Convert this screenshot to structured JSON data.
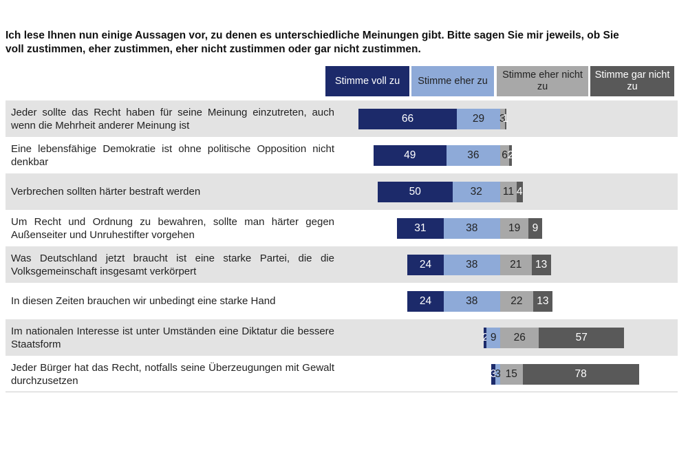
{
  "chart_data": {
    "type": "diverging-bar",
    "title": "Ich lese Ihnen nun einige Aussagen vor, zu denen es unterschiedliche Meinungen gibt. Bitte sagen Sie mir jeweils, ob Sie voll zustimmen, eher zustimmen, eher nicht zustimmen oder gar nicht zustimmen.",
    "categories": [
      "Jeder sollte das Recht haben für seine Meinung einzutreten, auch wenn die Mehrheit anderer Meinung ist",
      "Eine lebensfähige Demokratie ist ohne politische Opposition nicht denkbar",
      "Verbrechen sollten härter bestraft werden",
      "Um Recht und Ordnung zu bewahren, sollte man härter gegen Außenseiter und Unruhestifter vorgehen",
      "Was Deutschland jetzt braucht ist eine starke Partei, die die Volksgemeinschaft insgesamt verkörpert",
      "In diesen Zeiten brauchen wir unbedingt eine starke Hand",
      "Im nationalen Interesse ist unter Umständen eine Diktatur die bessere Staatsform",
      "Jeder Bürger hat das Recht, notfalls seine Überzeugungen mit Gewalt durchzusetzen"
    ],
    "series": [
      {
        "name": "Stimme voll zu",
        "color": "#1c2a6a",
        "values": [
          66,
          49,
          50,
          31,
          24,
          24,
          2,
          3
        ]
      },
      {
        "name": "Stimme eher zu",
        "color": "#8eaad8",
        "values": [
          29,
          36,
          32,
          38,
          38,
          38,
          9,
          3
        ]
      },
      {
        "name": "Stimme eher nicht zu",
        "color": "#a8a8a8",
        "values": [
          3,
          6,
          11,
          19,
          21,
          22,
          26,
          15
        ]
      },
      {
        "name": "Stimme gar nicht zu",
        "color": "#595959",
        "values": [
          1,
          2,
          4,
          9,
          13,
          13,
          57,
          78
        ]
      }
    ]
  }
}
